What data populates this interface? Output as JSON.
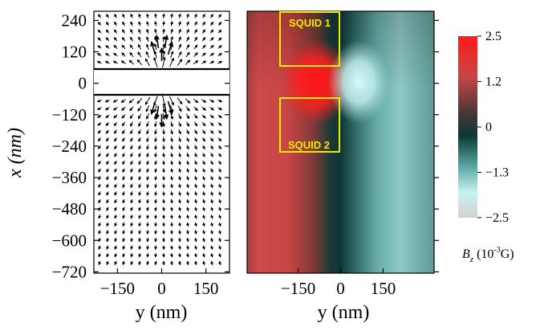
{
  "chart_data": [
    {
      "type": "vector-field",
      "xlabel": "y (nm)",
      "ylabel": "x (nm)",
      "x_ticks": [
        -150,
        0,
        150
      ],
      "y_ticks": [
        240,
        120,
        0,
        -120,
        -240,
        -360,
        -480,
        -600,
        -720
      ],
      "xlim": [
        -230,
        230
      ],
      "ylim": [
        -725,
        275
      ],
      "grid": false,
      "bar_x_range": [
        -55,
        55
      ]
    },
    {
      "type": "heatmap",
      "xlabel": "y (nm)",
      "x_ticks": [
        -150,
        0,
        150
      ],
      "xlim": [
        -330,
        330
      ],
      "ylim": [
        -725,
        275
      ],
      "colorbar": {
        "label": "B_z (10^-3 G)",
        "ticks": [
          "2.5",
          "1.2",
          "0",
          "-1.3",
          "-2.5"
        ],
        "range": [
          -2.5,
          2.5
        ],
        "colors": {
          "max": "#ff1a1a",
          "mid": "#0b3330",
          "min_cyan": "#c8f2f2",
          "min": "#d2d2d2"
        }
      },
      "annotations": [
        {
          "text": "SQUID 1",
          "x_range": [
            -200,
            -10
          ],
          "y_range": [
            70,
            250
          ],
          "color": "#f2ea00"
        },
        {
          "text": "SQUID 2",
          "x_range": [
            -200,
            -10
          ],
          "y_range": [
            -240,
            -60
          ],
          "color": "#f2ea00"
        }
      ]
    }
  ]
}
